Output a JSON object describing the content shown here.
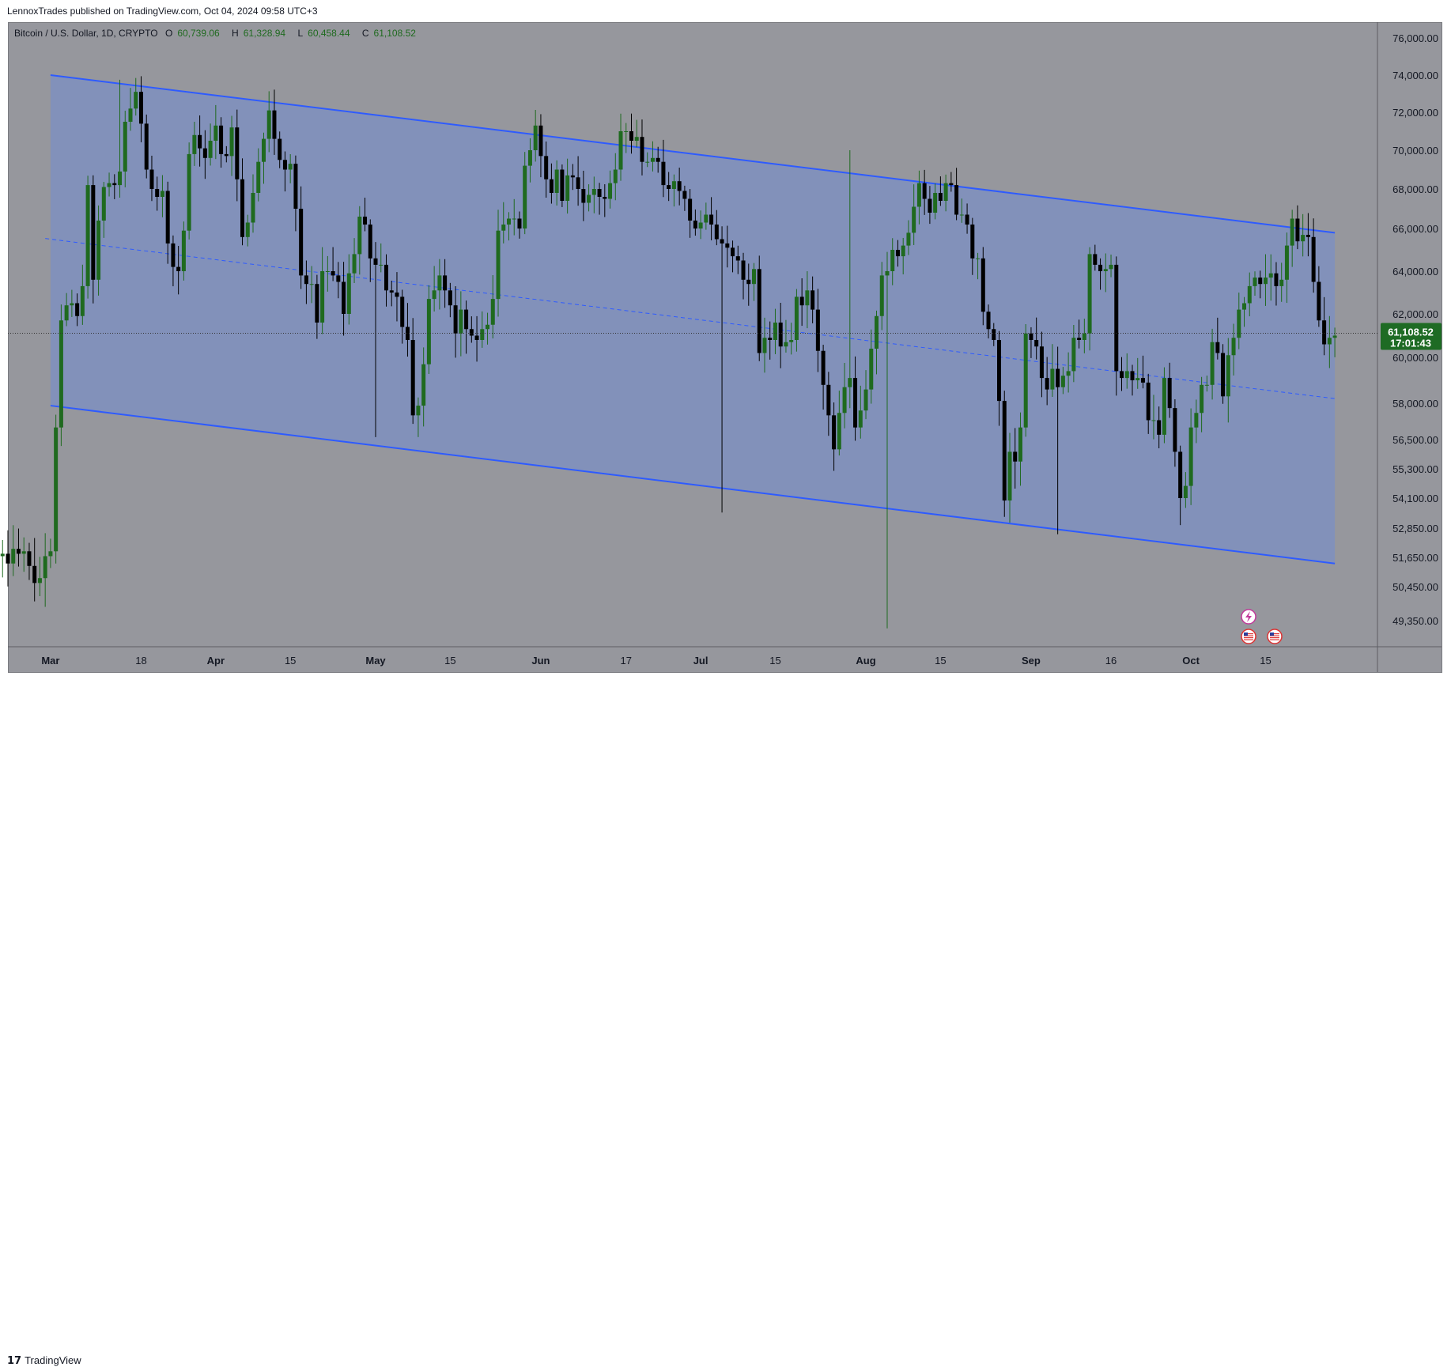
{
  "header": {
    "published": "LennoxTrades published on TradingView.com, Oct 04, 2024 09:58 UTC+3"
  },
  "legend": {
    "symbol": "Bitcoin / U.S. Dollar, 1D, CRYPTO",
    "open_label": "O",
    "open": "60,739.06",
    "high_label": "H",
    "high": "61,328.94",
    "low_label": "L",
    "low": "60,458.44",
    "close_label": "C",
    "close": "61,108.52"
  },
  "footer": {
    "brand": "TradingView",
    "logo": "17"
  },
  "price_tag": {
    "price": "61,108.52",
    "countdown": "17:01:43",
    "color": "#1e6b24"
  },
  "colors": {
    "background": "#96979d",
    "channel_fill": "#7f8fc0",
    "channel_line": "#2e5bff",
    "up_candle": "#1f6a1f",
    "down_candle": "#000000"
  },
  "icons": [
    "lightning-event-icon",
    "us-flag-event-icon",
    "us-flag-event-icon"
  ],
  "chart_data": {
    "type": "candlestick",
    "title": "Bitcoin / U.S. Dollar, 1D, CRYPTO",
    "y_tick_labels": [
      "76,000.00",
      "74,000.00",
      "72,000.00",
      "70,000.00",
      "68,000.00",
      "66,000.00",
      "64,000.00",
      "62,000.00",
      "60,000.00",
      "58,000.00",
      "56,500.00",
      "55,300.00",
      "54,100.00",
      "52,850.00",
      "51,650.00",
      "50,450.00",
      "49,350.00"
    ],
    "y_tick_values": [
      76000,
      74000,
      72000,
      70000,
      68000,
      66000,
      64000,
      62000,
      60000,
      58000,
      56500,
      55300,
      54100,
      52850,
      51650,
      50450,
      49350
    ],
    "ylim": [
      48600,
      77000
    ],
    "x_tick_labels": [
      "Mar",
      "18",
      "Apr",
      "15",
      "May",
      "15",
      "Jun",
      "17",
      "Jul",
      "15",
      "Aug",
      "15",
      "Sep",
      "16",
      "Oct",
      "15"
    ],
    "x_tick_dates": [
      "2024-03-01",
      "2024-03-18",
      "2024-04-01",
      "2024-04-15",
      "2024-05-01",
      "2024-05-15",
      "2024-06-01",
      "2024-06-17",
      "2024-07-01",
      "2024-07-15",
      "2024-08-01",
      "2024-08-15",
      "2024-09-01",
      "2024-09-16",
      "2024-10-01",
      "2024-10-15"
    ],
    "x_tick_bold": [
      "Mar",
      "Apr",
      "May",
      "Jun",
      "Jul",
      "Aug",
      "Sep",
      "Oct"
    ],
    "xlim": [
      "2024-02-22",
      "2024-11-05"
    ],
    "candle_close": [
      51700,
      51800,
      51400,
      52000,
      51800,
      51900,
      51300,
      50600,
      50800,
      51700,
      51900,
      57000,
      61700,
      62400,
      62500,
      61900,
      63300,
      68200,
      63600,
      66400,
      68100,
      68300,
      68200,
      68900,
      71500,
      72200,
      73100,
      71400,
      69000,
      68000,
      67600,
      67900,
      65300,
      64200,
      64000,
      65900,
      69800,
      70800,
      70100,
      69600,
      70500,
      71300,
      69800,
      69700,
      71200,
      68500,
      65600,
      66300,
      67800,
      69400,
      70600,
      72100,
      70600,
      69500,
      69000,
      69300,
      67000,
      63800,
      63400,
      63400,
      61600,
      64000,
      64000,
      63800,
      63500,
      62000,
      63900,
      64800,
      66600,
      66200,
      64600,
      64300,
      64300,
      63100,
      63000,
      62800,
      61400,
      60800,
      57500,
      57900,
      59700,
      62700,
      63100,
      63800,
      63100,
      62400,
      61100,
      62200,
      61300,
      61000,
      60800,
      61300,
      61500,
      62700,
      65900,
      66200,
      66500,
      66500,
      66000,
      69200,
      70000,
      71300,
      69700,
      68500,
      67800,
      69000,
      67400,
      68700,
      68600,
      68000,
      67300,
      67700,
      68000,
      67600,
      67500,
      68300,
      69000,
      71000,
      71000,
      70500,
      70700,
      69400,
      69400,
      69600,
      69400,
      68200,
      68000,
      68400,
      67900,
      67500,
      66400,
      66000,
      66300,
      66700,
      66200,
      65500,
      65300,
      65100,
      64700,
      64500,
      63600,
      63400,
      64100,
      60200,
      60900,
      60800,
      61600,
      60500,
      60700,
      60800,
      62800,
      62400,
      63100,
      62200,
      60300,
      58800,
      57500,
      56100,
      57600,
      58700,
      59100,
      57000,
      57700,
      58600,
      60400,
      61900,
      63800,
      64000,
      65000,
      64700,
      65200,
      65800,
      67100,
      68300,
      67500,
      66800,
      67800,
      67400,
      68300,
      68200,
      66700,
      66700,
      66200,
      64600,
      64600,
      62100,
      61300,
      60800,
      58100,
      54000,
      56000,
      55600,
      57000,
      61100,
      60800,
      60500,
      59100,
      58600,
      59500,
      58700,
      59200,
      59400,
      60900,
      60800,
      61100,
      64800,
      64300,
      64000,
      64100,
      64300,
      59400,
      59100,
      59400,
      59000,
      59100,
      58900,
      57300,
      57300,
      56700,
      59100,
      57800,
      56000,
      54100,
      54600,
      57000,
      57600,
      58800,
      58800,
      60700,
      60200,
      58300,
      60100,
      60900,
      62200,
      62500,
      63300,
      63700,
      63400,
      63700,
      63900,
      63300,
      63600,
      65200,
      66500,
      65400,
      65700,
      65600,
      63500,
      61700,
      60600,
      60900,
      61000
    ],
    "candle_open": [
      51900,
      51700,
      51800,
      51400,
      52000,
      51800,
      51900,
      51300,
      50600,
      50800,
      51700,
      51900,
      57000,
      61700,
      62400,
      62500,
      61900,
      63300,
      68200,
      63600,
      66400,
      68100,
      68300,
      68200,
      68900,
      71500,
      72200,
      73100,
      71400,
      69000,
      68000,
      67600,
      67900,
      65300,
      64200,
      64000,
      65900,
      69800,
      70800,
      70100,
      69600,
      70500,
      71300,
      69800,
      69700,
      71200,
      68500,
      65600,
      66300,
      67800,
      69400,
      70600,
      72100,
      70600,
      69500,
      69000,
      69300,
      67000,
      63800,
      63400,
      63400,
      61600,
      64000,
      64000,
      63800,
      63500,
      62000,
      63900,
      64800,
      66600,
      66200,
      64600,
      64300,
      64300,
      63100,
      63000,
      62800,
      61400,
      60800,
      57500,
      57900,
      59700,
      62700,
      63100,
      63800,
      63100,
      62400,
      61100,
      62200,
      61300,
      61000,
      60800,
      61300,
      61500,
      62700,
      65900,
      66200,
      66500,
      66500,
      66000,
      69200,
      70000,
      71300,
      69700,
      68500,
      67800,
      69000,
      67400,
      68700,
      68600,
      68000,
      67300,
      67700,
      68000,
      67600,
      67500,
      68300,
      69000,
      71000,
      71000,
      70500,
      70700,
      69400,
      69400,
      69600,
      69400,
      68200,
      68000,
      68400,
      67900,
      67500,
      66400,
      66000,
      66300,
      66700,
      66200,
      65500,
      65300,
      65100,
      64700,
      64500,
      63600,
      63400,
      64100,
      60200,
      60900,
      60800,
      61600,
      60500,
      60700,
      60800,
      62800,
      62400,
      63100,
      62200,
      60300,
      58800,
      57500,
      56100,
      57600,
      58700,
      59100,
      57000,
      57700,
      58600,
      60400,
      61900,
      63800,
      64000,
      65000,
      64700,
      65200,
      65800,
      67100,
      68300,
      67500,
      66800,
      67800,
      67400,
      68300,
      68200,
      66700,
      66700,
      66200,
      64600,
      64600,
      62100,
      61300,
      60800,
      58100,
      54000,
      56000,
      55600,
      57000,
      61100,
      60800,
      60500,
      59100,
      58600,
      59500,
      58700,
      59200,
      59400,
      60900,
      60800,
      61100,
      64800,
      64300,
      64000,
      64100,
      64300,
      59400,
      59100,
      59400,
      59000,
      59100,
      58900,
      57300,
      57300,
      56700,
      59100,
      57800,
      56000,
      54100,
      54600,
      57000,
      57600,
      58800,
      58800,
      60700,
      60200,
      58300,
      60100,
      60900,
      62200,
      62500,
      63300,
      63700,
      63400,
      63700,
      63900,
      63300,
      63600,
      65200,
      66500,
      65400,
      65700,
      65600,
      63500,
      61700,
      60600,
      60900
    ],
    "channel": {
      "upper": [
        [
          "2024-03-01",
          74000
        ],
        [
          "2024-10-28",
          65800
        ]
      ],
      "lower": [
        [
          "2024-03-01",
          57900
        ],
        [
          "2024-10-28",
          51400
        ]
      ],
      "mid_dashed": [
        [
          "2024-03-01",
          65500
        ],
        [
          "2024-10-28",
          58200
        ]
      ]
    },
    "current_price": 61108.52,
    "countdown": "17:01:43"
  }
}
